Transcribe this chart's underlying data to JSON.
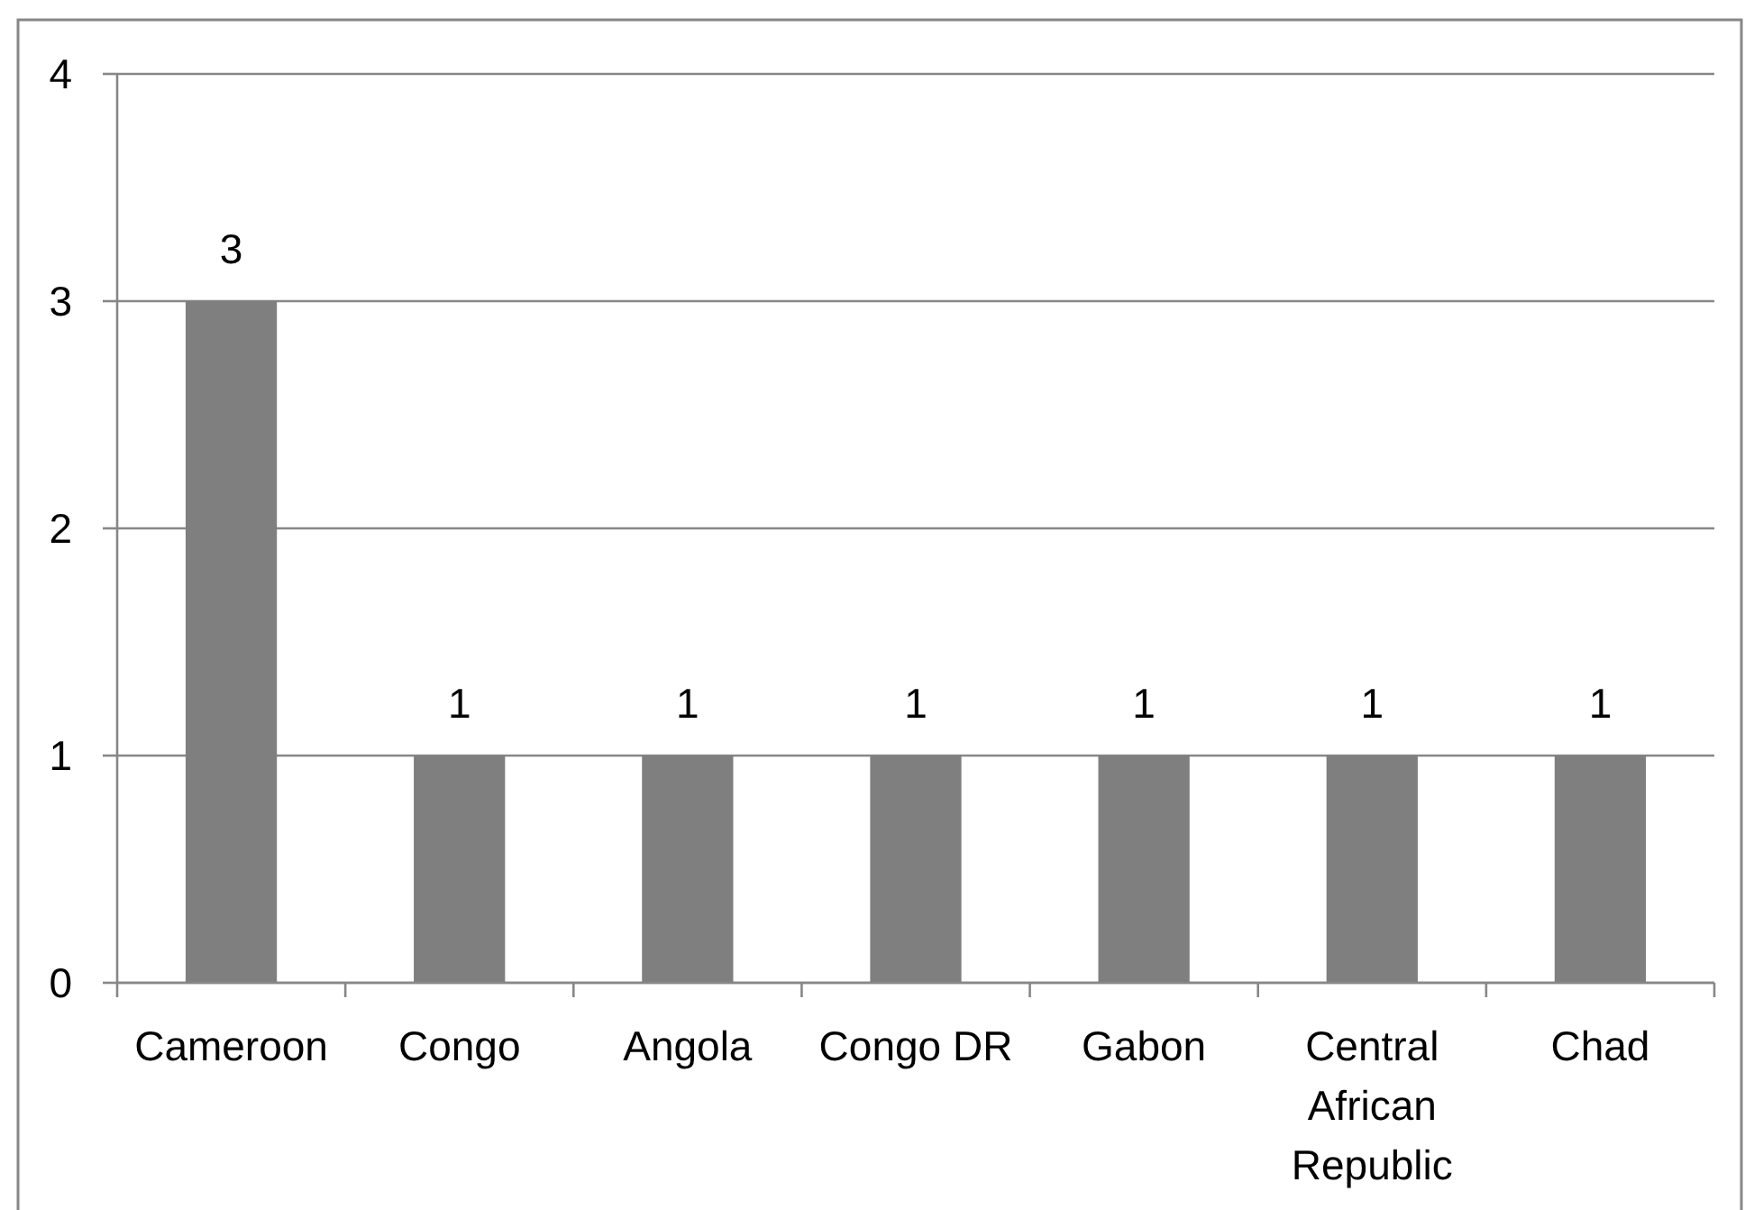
{
  "chart_data": {
    "type": "bar",
    "categories": [
      "Cameroon",
      "Congo",
      "Angola",
      "Congo DR",
      "Gabon",
      "Central African Republic",
      "Chad"
    ],
    "values": [
      3,
      1,
      1,
      1,
      1,
      1,
      1
    ],
    "color": "#7f7f7f",
    "ylim": [
      0,
      4
    ],
    "yticks": [
      0,
      1,
      2,
      3,
      4
    ],
    "grid": "y",
    "data_labels": true
  }
}
